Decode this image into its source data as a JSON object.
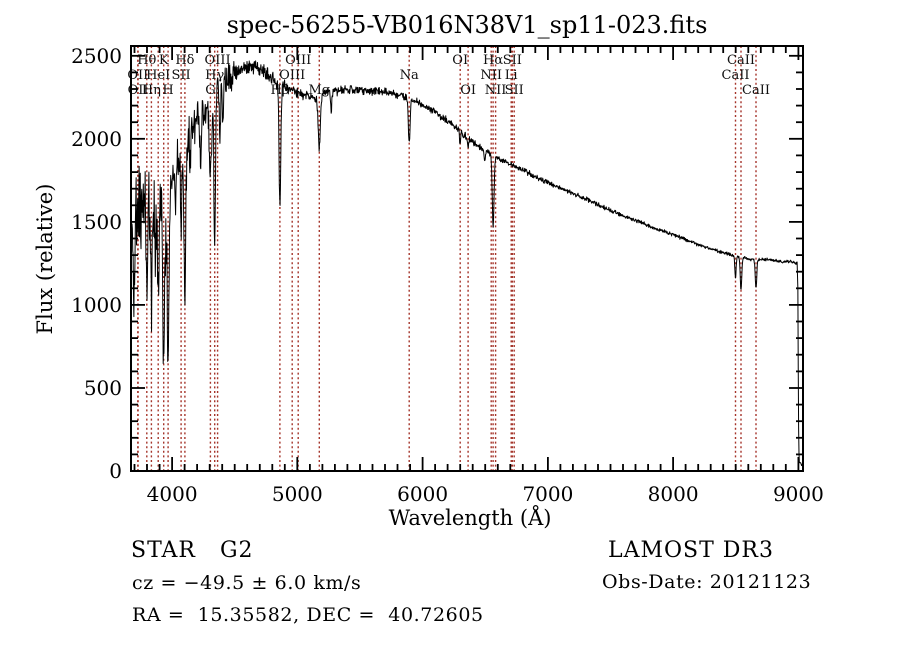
{
  "title": "spec-56255-VB016N38V1_sp11-023.fits",
  "chart_data": {
    "type": "line",
    "title": "spec-56255-VB016N38V1_sp11-023.fits",
    "xlabel": "Wavelength (Å)",
    "ylabel": "Flux (relative)",
    "xlim": [
      3672,
      9037
    ],
    "ylim": [
      0,
      2559
    ],
    "x_ticks_major": [
      4000,
      5000,
      6000,
      7000,
      8000,
      9000
    ],
    "x_minor_step": 100,
    "y_ticks_major": [
      0,
      500,
      1000,
      1500,
      2000,
      2500
    ],
    "y_minor_step": 100,
    "grid": false,
    "legend": "none",
    "line_color": "#000000",
    "marker_line_color": "#a5342a",
    "label_rows_y": {
      "1": 64,
      "2": 79,
      "3": 94
    },
    "spectral_lines": [
      {
        "label": "OII",
        "wavelength": 3726,
        "row": 2
      },
      {
        "label": "OII",
        "wavelength": 3729,
        "row": 3
      },
      {
        "label": "Hθ",
        "wavelength": 3798,
        "row": 1
      },
      {
        "label": "Hη",
        "wavelength": 3835,
        "row": 3
      },
      {
        "label": "HeI",
        "wavelength": 3889,
        "row": 2
      },
      {
        "label": "K",
        "wavelength": 3933,
        "row": 1
      },
      {
        "label": "H",
        "wavelength": 3968,
        "row": 3
      },
      {
        "label": "SII",
        "wavelength": 4072,
        "row": 2
      },
      {
        "label": "Hδ",
        "wavelength": 4102,
        "row": 1
      },
      {
        "label": "G",
        "wavelength": 4306,
        "row": 3
      },
      {
        "label": "Hγ",
        "wavelength": 4340,
        "row": 2
      },
      {
        "label": "OIII",
        "wavelength": 4363,
        "row": 1
      },
      {
        "label": "Hβ",
        "wavelength": 4861,
        "row": 3
      },
      {
        "label": "OIII",
        "wavelength": 4959,
        "row": 2
      },
      {
        "label": "OIII",
        "wavelength": 5007,
        "row": 1
      },
      {
        "label": "Mg",
        "wavelength": 5175,
        "row": 3
      },
      {
        "label": "Na",
        "wavelength": 5893,
        "row": 2
      },
      {
        "label": "OI",
        "wavelength": 6300,
        "row": 1
      },
      {
        "label": "OI",
        "wavelength": 6363,
        "row": 3
      },
      {
        "label": "NII",
        "wavelength": 6548,
        "row": 2
      },
      {
        "label": "Hα",
        "wavelength": 6563,
        "row": 1
      },
      {
        "label": "NII",
        "wavelength": 6583,
        "row": 3
      },
      {
        "label": "Li",
        "wavelength": 6707,
        "row": 2
      },
      {
        "label": "SII",
        "wavelength": 6716,
        "row": 1
      },
      {
        "label": "SII",
        "wavelength": 6731,
        "row": 3
      },
      {
        "label": "CaII",
        "wavelength": 8498,
        "row": 2
      },
      {
        "label": "CaII",
        "wavelength": 8542,
        "row": 1
      },
      {
        "label": "CaII",
        "wavelength": 8662,
        "row": 3
      }
    ],
    "continuum": [
      [
        3672,
        1480
      ],
      [
        3700,
        1620
      ],
      [
        3740,
        1700
      ],
      [
        3790,
        1680
      ],
      [
        3840,
        1620
      ],
      [
        3890,
        1580
      ],
      [
        3940,
        1600
      ],
      [
        3990,
        1750
      ],
      [
        4040,
        1900
      ],
      [
        4090,
        1950
      ],
      [
        4140,
        2030
      ],
      [
        4200,
        2120
      ],
      [
        4260,
        2180
      ],
      [
        4320,
        2240
      ],
      [
        4380,
        2300
      ],
      [
        4440,
        2350
      ],
      [
        4500,
        2390
      ],
      [
        4560,
        2430
      ],
      [
        4620,
        2445
      ],
      [
        4680,
        2430
      ],
      [
        4740,
        2400
      ],
      [
        4800,
        2360
      ],
      [
        4860,
        2330
      ],
      [
        4920,
        2300
      ],
      [
        4980,
        2280
      ],
      [
        5040,
        2265
      ],
      [
        5100,
        2255
      ],
      [
        5160,
        2255
      ],
      [
        5220,
        2270
      ],
      [
        5280,
        2285
      ],
      [
        5340,
        2290
      ],
      [
        5400,
        2295
      ],
      [
        5460,
        2300
      ],
      [
        5520,
        2295
      ],
      [
        5580,
        2290
      ],
      [
        5640,
        2285
      ],
      [
        5700,
        2280
      ],
      [
        5760,
        2272
      ],
      [
        5820,
        2262
      ],
      [
        5880,
        2248
      ],
      [
        5940,
        2230
      ],
      [
        6000,
        2205
      ],
      [
        6060,
        2180
      ],
      [
        6120,
        2150
      ],
      [
        6180,
        2120
      ],
      [
        6240,
        2085
      ],
      [
        6300,
        2045
      ],
      [
        6360,
        2005
      ],
      [
        6420,
        1968
      ],
      [
        6480,
        1938
      ],
      [
        6540,
        1910
      ],
      [
        6600,
        1885
      ],
      [
        6660,
        1862
      ],
      [
        6720,
        1840
      ],
      [
        6780,
        1818
      ],
      [
        6840,
        1795
      ],
      [
        6900,
        1772
      ],
      [
        6960,
        1750
      ],
      [
        7020,
        1730
      ],
      [
        7080,
        1710
      ],
      [
        7140,
        1692
      ],
      [
        7200,
        1672
      ],
      [
        7260,
        1652
      ],
      [
        7320,
        1632
      ],
      [
        7380,
        1610
      ],
      [
        7440,
        1590
      ],
      [
        7500,
        1570
      ],
      [
        7560,
        1550
      ],
      [
        7620,
        1530
      ],
      [
        7680,
        1512
      ],
      [
        7740,
        1498
      ],
      [
        7800,
        1480
      ],
      [
        7860,
        1460
      ],
      [
        7920,
        1445
      ],
      [
        7980,
        1430
      ],
      [
        8040,
        1412
      ],
      [
        8100,
        1392
      ],
      [
        8160,
        1375
      ],
      [
        8220,
        1358
      ],
      [
        8280,
        1342
      ],
      [
        8340,
        1328
      ],
      [
        8400,
        1315
      ],
      [
        8460,
        1302
      ],
      [
        8520,
        1290
      ],
      [
        8580,
        1280
      ],
      [
        8640,
        1272
      ],
      [
        8700,
        1272
      ],
      [
        8760,
        1275
      ],
      [
        8820,
        1268
      ],
      [
        8880,
        1258
      ],
      [
        8940,
        1262
      ],
      [
        8990,
        1252
      ],
      [
        8996,
        1100
      ],
      [
        9001,
        300
      ],
      [
        9006,
        60
      ],
      [
        9030,
        40
      ]
    ],
    "absorption_dips": [
      [
        3698,
        780,
        5
      ],
      [
        3727,
        220,
        5
      ],
      [
        3752,
        260,
        4
      ],
      [
        3798,
        560,
        6
      ],
      [
        3835,
        640,
        6
      ],
      [
        3865,
        300,
        4
      ],
      [
        3889,
        460,
        6
      ],
      [
        3933,
        900,
        8
      ],
      [
        3968,
        950,
        8
      ],
      [
        4026,
        200,
        4
      ],
      [
        4072,
        480,
        5
      ],
      [
        4102,
        900,
        7
      ],
      [
        4144,
        250,
        4
      ],
      [
        4227,
        280,
        5
      ],
      [
        4306,
        480,
        9
      ],
      [
        4340,
        920,
        6
      ],
      [
        4383,
        330,
        5
      ],
      [
        4405,
        250,
        4
      ],
      [
        4861,
        720,
        7
      ],
      [
        5175,
        320,
        9
      ],
      [
        5270,
        120,
        5
      ],
      [
        5893,
        270,
        7
      ],
      [
        6300,
        70,
        5
      ],
      [
        6363,
        45,
        4
      ],
      [
        6495,
        80,
        4
      ],
      [
        6563,
        430,
        7
      ],
      [
        8498,
        130,
        5
      ],
      [
        8542,
        195,
        6
      ],
      [
        8662,
        175,
        6
      ]
    ],
    "noise_regions": [
      [
        3672,
        3760,
        330
      ],
      [
        3760,
        3960,
        240
      ],
      [
        3960,
        4150,
        150
      ],
      [
        4150,
        4500,
        110
      ],
      [
        4500,
        4900,
        48
      ],
      [
        4900,
        5500,
        30
      ],
      [
        5500,
        5900,
        26
      ],
      [
        5900,
        6500,
        22
      ],
      [
        6500,
        7000,
        17
      ],
      [
        7000,
        7600,
        14
      ],
      [
        7600,
        8300,
        12
      ],
      [
        8300,
        9040,
        10
      ]
    ]
  },
  "annotations": {
    "class_line": "STAR   G2",
    "cz_line": "cz = −49.5 ± 6.0 km/s",
    "radec_line": "RA =  15.35582, DEC =  40.72605",
    "survey_line": "LAMOST DR3",
    "obsdate_line": "Obs-Date: 20121123"
  }
}
